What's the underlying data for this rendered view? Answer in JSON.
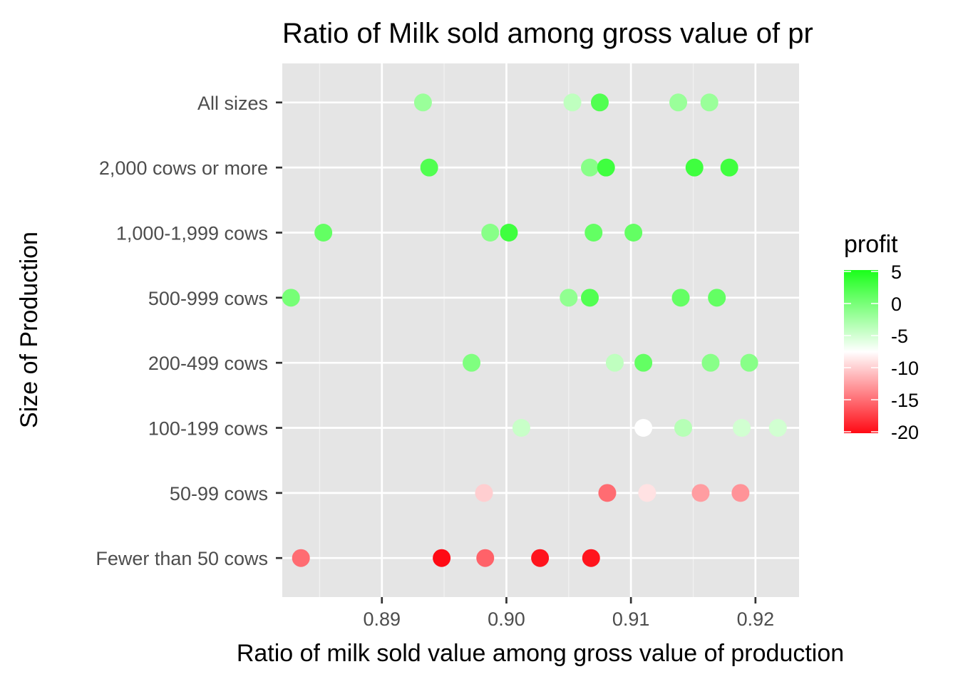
{
  "chart_data": {
    "type": "scatter",
    "title": "Ratio of Milk sold among gross value of pr",
    "xlabel": "Ratio of milk sold value among gross value of production",
    "ylabel": "Size of Production",
    "xlim": [
      0.882,
      0.9235
    ],
    "x_ticks": [
      {
        "value": 0.89,
        "label": "0.89"
      },
      {
        "value": 0.9,
        "label": "0.90"
      },
      {
        "value": 0.91,
        "label": "0.91"
      },
      {
        "value": 0.92,
        "label": "0.92"
      }
    ],
    "categories": [
      "Fewer than 50 cows",
      "50-99 cows",
      "100-199 cows",
      "200-499 cows",
      "500-999 cows",
      "1,000-1,999 cows",
      "2,000 cows or more",
      "All sizes"
    ],
    "grid": true,
    "legend": {
      "title": "profit",
      "placement": "right",
      "min": -20,
      "max": 5,
      "ticks": [
        {
          "value": 5,
          "label": "5"
        },
        {
          "value": 0,
          "label": "0"
        },
        {
          "value": -5,
          "label": "-5"
        },
        {
          "value": -10,
          "label": "-10"
        },
        {
          "value": -15,
          "label": "-15"
        },
        {
          "value": -20,
          "label": "-20"
        }
      ],
      "colors": {
        "low": "#ff0000",
        "mid": "#ffffff",
        "high": "#00ff00",
        "midpoint": -7.5
      }
    },
    "points": [
      {
        "category": "All sizes",
        "x": 0.8933,
        "profit": -2
      },
      {
        "category": "All sizes",
        "x": 0.9053,
        "profit": -4
      },
      {
        "category": "All sizes",
        "x": 0.9075,
        "profit": 2
      },
      {
        "category": "All sizes",
        "x": 0.9138,
        "profit": -2
      },
      {
        "category": "All sizes",
        "x": 0.9163,
        "profit": -2
      },
      {
        "category": "2,000 cows or more",
        "x": 0.8938,
        "profit": 2
      },
      {
        "category": "2,000 cows or more",
        "x": 0.9067,
        "profit": -1
      },
      {
        "category": "2,000 cows or more",
        "x": 0.908,
        "profit": 3
      },
      {
        "category": "2,000 cows or more",
        "x": 0.9151,
        "profit": 3
      },
      {
        "category": "2,000 cows or more",
        "x": 0.9179,
        "profit": 3
      },
      {
        "category": "1,000-1,999 cows",
        "x": 0.8853,
        "profit": 1
      },
      {
        "category": "1,000-1,999 cows",
        "x": 0.8987,
        "profit": -1
      },
      {
        "category": "1,000-1,999 cows",
        "x": 0.9002,
        "profit": 3
      },
      {
        "category": "1,000-1,999 cows",
        "x": 0.907,
        "profit": 1
      },
      {
        "category": "1,000-1,999 cows",
        "x": 0.9102,
        "profit": 1
      },
      {
        "category": "500-999 cows",
        "x": 0.8827,
        "profit": 0
      },
      {
        "category": "500-999 cows",
        "x": 0.905,
        "profit": -1.5
      },
      {
        "category": "500-999 cows",
        "x": 0.9067,
        "profit": 2
      },
      {
        "category": "500-999 cows",
        "x": 0.914,
        "profit": 1
      },
      {
        "category": "500-999 cows",
        "x": 0.9169,
        "profit": 1
      },
      {
        "category": "200-499 cows",
        "x": 0.8972,
        "profit": -0.5
      },
      {
        "category": "200-499 cows",
        "x": 0.9087,
        "profit": -4
      },
      {
        "category": "200-499 cows",
        "x": 0.911,
        "profit": 1
      },
      {
        "category": "200-499 cows",
        "x": 0.9164,
        "profit": -1
      },
      {
        "category": "200-499 cows",
        "x": 0.9195,
        "profit": -1
      },
      {
        "category": "100-199 cows",
        "x": 0.9012,
        "profit": -4.5
      },
      {
        "category": "100-199 cows",
        "x": 0.911,
        "profit": -7.5
      },
      {
        "category": "100-199 cows",
        "x": 0.9142,
        "profit": -3.5
      },
      {
        "category": "100-199 cows",
        "x": 0.9189,
        "profit": -5
      },
      {
        "category": "100-199 cows",
        "x": 0.9218,
        "profit": -5
      },
      {
        "category": "50-99 cows",
        "x": 0.8982,
        "profit": -10
      },
      {
        "category": "50-99 cows",
        "x": 0.9081,
        "profit": -15
      },
      {
        "category": "50-99 cows",
        "x": 0.9113,
        "profit": -9
      },
      {
        "category": "50-99 cows",
        "x": 0.9156,
        "profit": -12.5
      },
      {
        "category": "50-99 cows",
        "x": 0.9188,
        "profit": -13
      },
      {
        "category": "Fewer than 50 cows",
        "x": 0.8835,
        "profit": -15
      },
      {
        "category": "Fewer than 50 cows",
        "x": 0.8948,
        "profit": -20
      },
      {
        "category": "Fewer than 50 cows",
        "x": 0.8983,
        "profit": -15.5
      },
      {
        "category": "Fewer than 50 cows",
        "x": 0.9027,
        "profit": -19.5
      },
      {
        "category": "Fewer than 50 cows",
        "x": 0.9068,
        "profit": -19.5
      }
    ]
  }
}
